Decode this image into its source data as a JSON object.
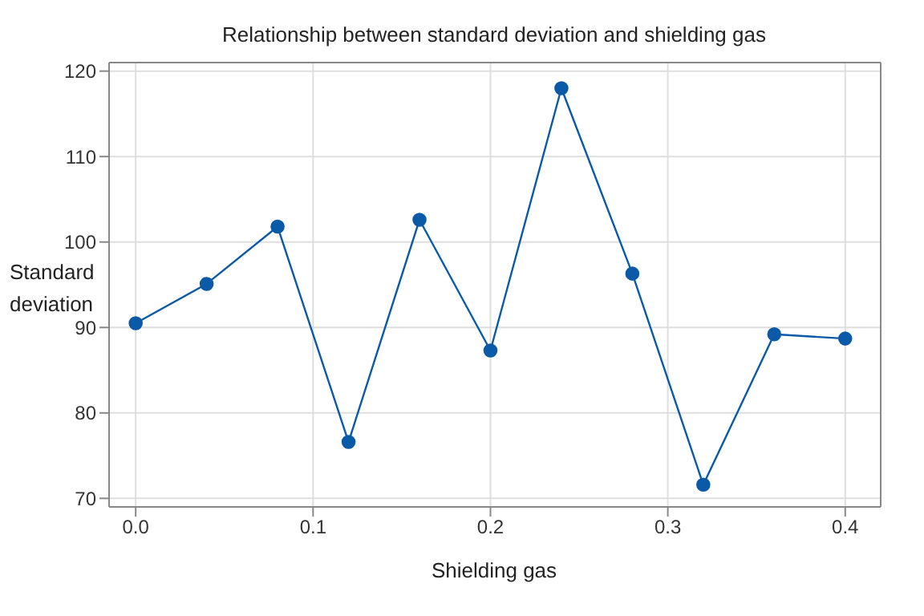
{
  "chart_data": {
    "type": "line",
    "title": "Relationship between standard deviation and shielding gas",
    "xlabel": "Shielding gas",
    "ylabel": "Standard deviation",
    "x": [
      0,
      0.04,
      0.08,
      0.12,
      0.16,
      0.2,
      0.24,
      0.28,
      0.32,
      0.36,
      0.4
    ],
    "series": [
      {
        "color": "#0a5aa8",
        "values": [
          90.5,
          95.1,
          101.8,
          76.6,
          102.6,
          87.3,
          118.0,
          96.3,
          71.6,
          89.2,
          88.7
        ]
      }
    ],
    "xlim": [
      -0.015,
      0.42
    ],
    "xticks": [
      {
        "value": 0,
        "label": "0.0"
      },
      0.1,
      0.2,
      0.3,
      0.4
    ],
    "ylim": [
      69,
      121
    ],
    "yticks": [
      70,
      80,
      90,
      100,
      110,
      120
    ],
    "grid": true,
    "marker": "circle",
    "line_style": "solid"
  }
}
